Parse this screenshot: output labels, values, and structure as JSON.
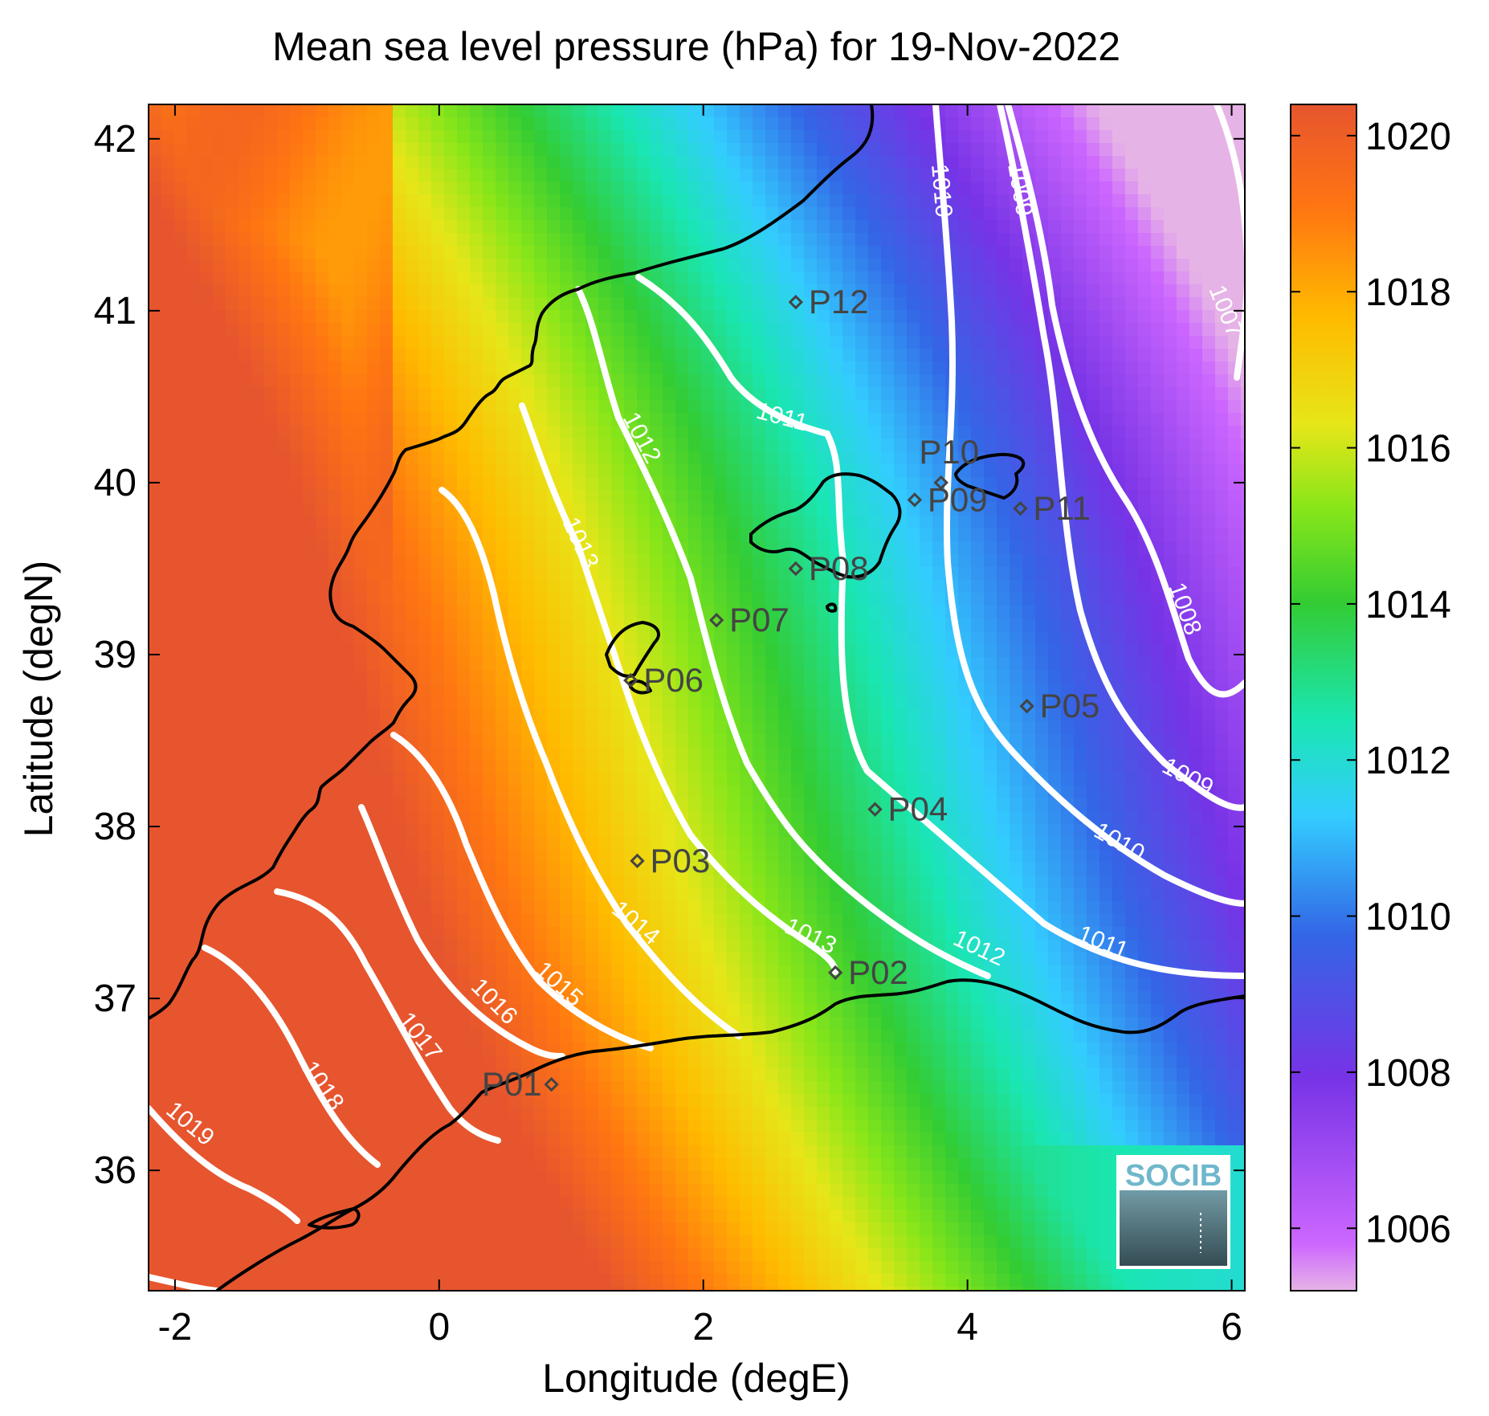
{
  "title": "Mean sea level pressure (hPa) for 19-Nov-2022",
  "xlabel": "Longitude (degE)",
  "ylabel": "Latitude (degN)",
  "xlim": [
    -2.2,
    6.1
  ],
  "ylim": [
    35.3,
    42.2
  ],
  "x_ticks": [
    "-2",
    "0",
    "2",
    "4",
    "6"
  ],
  "y_ticks": [
    "36",
    "37",
    "38",
    "39",
    "40",
    "41",
    "42"
  ],
  "colorbar": {
    "range": [
      1005.2,
      1020.4
    ],
    "ticks": [
      "1006",
      "1008",
      "1010",
      "1012",
      "1014",
      "1016",
      "1018",
      "1020"
    ],
    "colormap": [
      "#e6b3e6",
      "#cc66ff",
      "#7733e6",
      "#3366e6",
      "#33ccff",
      "#1ae6b3",
      "#33cc33",
      "#88e619",
      "#e6e619",
      "#ffbb00",
      "#ff7711",
      "#e6552e"
    ]
  },
  "contour_labels": [
    "1007",
    "1008",
    "1009",
    "1009",
    "1010",
    "1010",
    "1011",
    "1011",
    "1012",
    "1012",
    "1013",
    "1013",
    "1014",
    "1015",
    "1016",
    "1017",
    "1018",
    "1019"
  ],
  "stations": [
    {
      "name": "P01",
      "lon": 0.85,
      "lat": 36.5
    },
    {
      "name": "P02",
      "lon": 3.0,
      "lat": 37.15
    },
    {
      "name": "P03",
      "lon": 1.5,
      "lat": 37.8
    },
    {
      "name": "P04",
      "lon": 3.3,
      "lat": 38.1
    },
    {
      "name": "P05",
      "lon": 4.45,
      "lat": 38.7
    },
    {
      "name": "P06",
      "lon": 1.45,
      "lat": 38.85
    },
    {
      "name": "P07",
      "lon": 2.1,
      "lat": 39.2
    },
    {
      "name": "P08",
      "lon": 2.7,
      "lat": 39.5
    },
    {
      "name": "P09",
      "lon": 3.6,
      "lat": 39.9
    },
    {
      "name": "P10",
      "lon": 3.8,
      "lat": 40.0
    },
    {
      "name": "P11",
      "lon": 4.4,
      "lat": 39.85
    },
    {
      "name": "P12",
      "lon": 2.7,
      "lat": 41.05
    }
  ],
  "logo": {
    "text": "SOCIB"
  }
}
